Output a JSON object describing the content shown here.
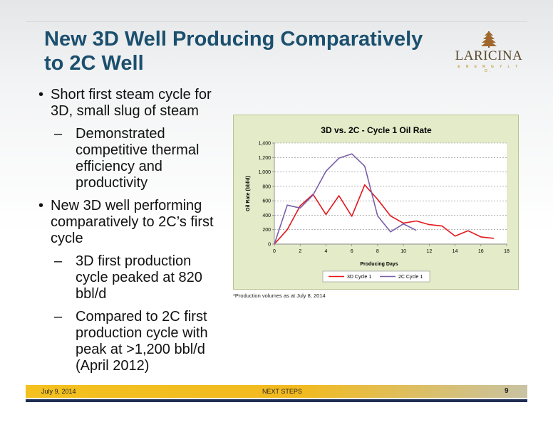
{
  "slide": {
    "title": "New 3D Well Producing Comparatively to 2C Well",
    "logo": {
      "name": "LARICINA",
      "tagline": "E N E R G Y   L T D."
    },
    "bullets": [
      {
        "marker": "•",
        "text": "Short first steam cycle for 3D, small slug of steam",
        "sub": [
          {
            "marker": "–",
            "text": "Demonstrated competitive thermal efficiency and productivity"
          }
        ]
      },
      {
        "marker": "•",
        "text": "New 3D well performing comparatively to 2C’s first cycle",
        "sub": [
          {
            "marker": "–",
            "text": "3D first production cycle peaked at 820 bbl/d"
          },
          {
            "marker": "–",
            "text": "Compared to 2C first production cycle with peak at >1,200 bbl/d (April 2012)"
          }
        ]
      }
    ],
    "footnote": "*Production volumes as at July 8, 2014",
    "footer": {
      "date": "July 9, 2014",
      "center": "NEXT STEPS",
      "page": "9"
    }
  },
  "chart_data": {
    "type": "line",
    "title": "3D vs. 2C - Cycle 1 Oil Rate",
    "xlabel": "Producing Days",
    "ylabel": "Oil Rate (bbl/d)",
    "xlim": [
      0,
      18
    ],
    "ylim": [
      0,
      1400
    ],
    "xticks": [
      "0",
      "2",
      "4",
      "6",
      "8",
      "10",
      "12",
      "14",
      "16",
      "18"
    ],
    "yticks": [
      "0",
      "200",
      "400",
      "600",
      "800",
      "1,000",
      "1,200",
      "1,400"
    ],
    "grid": "horizontal dashed",
    "legend": "bottom",
    "series": [
      {
        "name": "3D Cycle 1",
        "color": "#e3161b",
        "x": [
          0,
          1,
          2,
          3,
          4,
          5,
          6,
          7,
          8,
          9,
          10,
          11,
          12,
          13,
          14,
          15,
          16,
          17
        ],
        "y": [
          0,
          200,
          530,
          690,
          410,
          670,
          385,
          820,
          620,
          390,
          290,
          320,
          270,
          250,
          110,
          185,
          100,
          80
        ]
      },
      {
        "name": "2C Cycle 1",
        "color": "#7a5fa7",
        "x": [
          0,
          1,
          2,
          3,
          4,
          5,
          6,
          7,
          8,
          9,
          10,
          11
        ],
        "y": [
          0,
          540,
          500,
          680,
          1010,
          1190,
          1250,
          1080,
          390,
          170,
          280,
          190
        ]
      }
    ]
  }
}
